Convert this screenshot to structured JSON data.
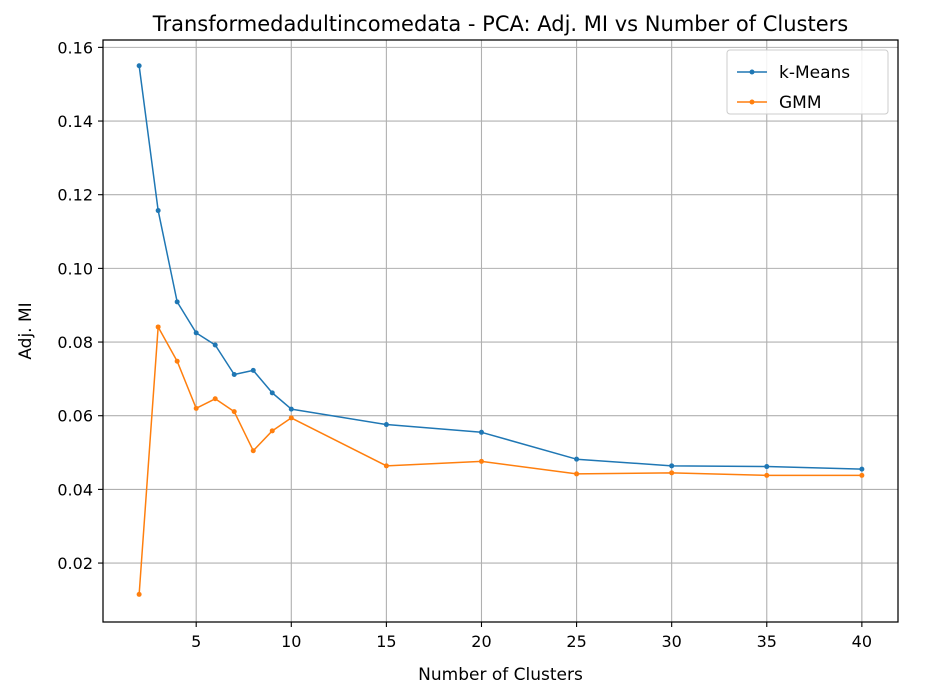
{
  "chart_data": {
    "type": "line",
    "title": "Transformedadultincomedata - PCA: Adj. MI vs Number of Clusters",
    "xlabel": "Number of Clusters",
    "ylabel": "Adj. MI",
    "x": [
      2,
      3,
      4,
      5,
      6,
      7,
      8,
      9,
      10,
      15,
      20,
      25,
      30,
      35,
      40
    ],
    "xlim": [
      0.1,
      41.9
    ],
    "ylim": [
      0.004,
      0.162
    ],
    "xticks": [
      5,
      10,
      15,
      20,
      25,
      30,
      35,
      40
    ],
    "xtick_labels": [
      "5",
      "10",
      "15",
      "20",
      "25",
      "30",
      "35",
      "40"
    ],
    "yticks": [
      0.02,
      0.04,
      0.06,
      0.08,
      0.1,
      0.12,
      0.14,
      0.16
    ],
    "ytick_labels": [
      "0.02",
      "0.04",
      "0.06",
      "0.08",
      "0.10",
      "0.12",
      "0.14",
      "0.16"
    ],
    "grid": true,
    "legend_position": "top-right",
    "series": [
      {
        "name": "k-Means",
        "color": "#1f77b4",
        "values": [
          0.155,
          0.1157,
          0.0909,
          0.0825,
          0.0792,
          0.0712,
          0.0723,
          0.0662,
          0.0618,
          0.0576,
          0.0555,
          0.0482,
          0.0464,
          0.0462,
          0.0455
        ]
      },
      {
        "name": "GMM",
        "color": "#ff7f0e",
        "values": [
          0.0115,
          0.0841,
          0.0748,
          0.062,
          0.0646,
          0.0611,
          0.0505,
          0.0559,
          0.0594,
          0.0464,
          0.0476,
          0.0442,
          0.0445,
          0.0438,
          0.0438
        ]
      }
    ]
  }
}
